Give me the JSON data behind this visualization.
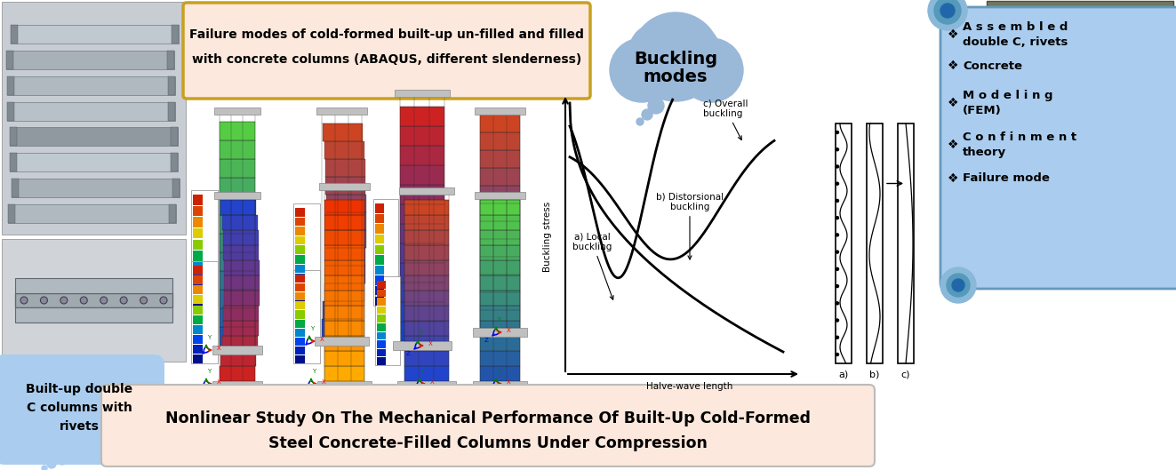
{
  "title_line1": "Nonlinear Study On The Mechanical Performance Of Built-Up Cold-Formed",
  "title_line2": "Steel Concrete-Filled Columns Under Compression",
  "title_box_facecolor": "#fce8dc",
  "abaqus_title_line1": "Failure modes of cold-formed built-up un-filled and filled",
  "abaqus_title_line2": "with concrete columns (ABAQUS, different slenderness)",
  "abaqus_box_facecolor": "#fce8dc",
  "abaqus_box_edgecolor": "#c8a020",
  "buckling_label_line1": "Buckling",
  "buckling_label_line2": "modes",
  "cloud_color": "#9ab8d8",
  "left_bubble_text": "Built-up double\nC columns with\nrivets",
  "left_bubble_color": "#aaccee",
  "scroll_bg": "#aaccee",
  "scroll_border": "#6699bb",
  "scroll_items": [
    "A s s e m b l e d\ndouble C, rivets",
    "Concrete",
    "M o d e l i n g\n(FEM)",
    "C o n f i n m e n t\ntheory",
    "Failure mode"
  ],
  "xlabel_buckling": "Halve-wave length",
  "ylabel_buckling": "Buckling stress",
  "label_a": "a) Local\nbuckling",
  "label_b": "b) Distorsional\nbuckling",
  "label_c": "c) Overall\nbuckling",
  "fig_w": 13.23,
  "fig_h": 5.29,
  "dpi": 100,
  "bg_color": "#ffffff"
}
